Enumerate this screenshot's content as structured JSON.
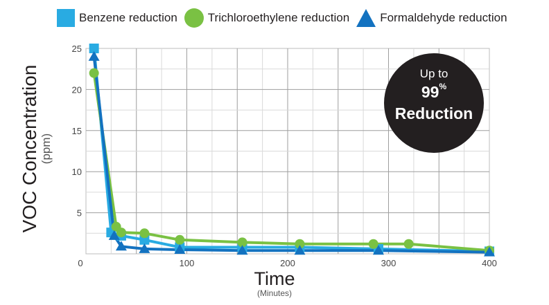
{
  "legend": {
    "benzene": "Benzene reduction",
    "tce": "Trichloroethylene reduction",
    "formaldehyde": "Formaldehyde reduction"
  },
  "axes": {
    "ylabel": "VOC Concentration",
    "ylabel_unit": "(ppm)",
    "xlabel": "Time",
    "xlabel_unit": "(Minutes)"
  },
  "badge": {
    "line1": "Up to",
    "line2_value": "99",
    "line2_suffix": "%",
    "line3": "Reduction"
  },
  "colors": {
    "benzene": "#29abe2",
    "tce": "#7ac143",
    "formaldehyde": "#1372c0",
    "grid": "#bdbdbd",
    "badge": "#231f20"
  },
  "chart_data": {
    "type": "line",
    "xlabel": "Time (Minutes)",
    "ylabel": "VOC Concentration (ppm)",
    "xlim": [
      0,
      400
    ],
    "ylim": [
      0,
      25
    ],
    "x_ticks": [
      0,
      100,
      200,
      300,
      400
    ],
    "y_ticks": [
      5,
      10,
      15,
      20,
      25
    ],
    "grid": true,
    "legend_position": "top",
    "series": [
      {
        "name": "Benzene reduction",
        "marker": "square",
        "color": "#29abe2",
        "points": [
          [
            8,
            25
          ],
          [
            25,
            2.6
          ],
          [
            35,
            2.2
          ],
          [
            58,
            1.7
          ],
          [
            93,
            0.8
          ],
          [
            155,
            0.8
          ],
          [
            212,
            0.8
          ],
          [
            290,
            0.6
          ],
          [
            400,
            0.3
          ]
        ]
      },
      {
        "name": "Trichloroethylene reduction",
        "marker": "circle",
        "color": "#7ac143",
        "points": [
          [
            8,
            22
          ],
          [
            30,
            3.3
          ],
          [
            35,
            2.6
          ],
          [
            58,
            2.5
          ],
          [
            93,
            1.7
          ],
          [
            155,
            1.4
          ],
          [
            212,
            1.2
          ],
          [
            285,
            1.2
          ],
          [
            320,
            1.2
          ],
          [
            400,
            0.4
          ]
        ]
      },
      {
        "name": "Formaldehyde reduction",
        "marker": "triangle",
        "color": "#1372c0",
        "points": [
          [
            8,
            24
          ],
          [
            28,
            2.2
          ],
          [
            35,
            0.9
          ],
          [
            58,
            0.6
          ],
          [
            93,
            0.5
          ],
          [
            155,
            0.4
          ],
          [
            212,
            0.4
          ],
          [
            290,
            0.4
          ],
          [
            400,
            0.2
          ]
        ]
      }
    ]
  }
}
